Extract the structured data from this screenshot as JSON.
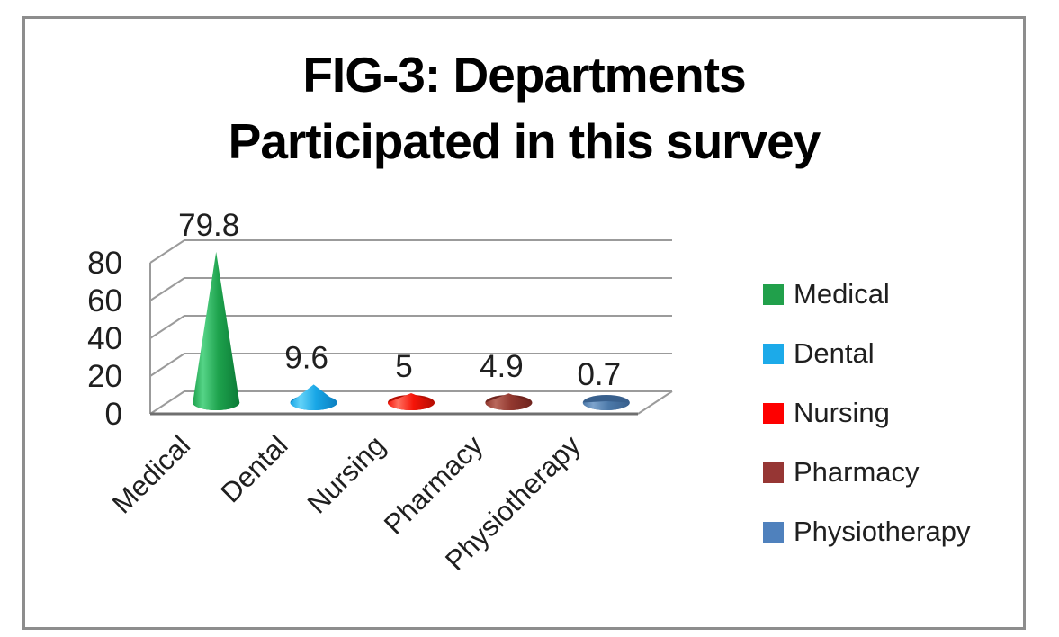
{
  "chart_data": {
    "type": "bar",
    "subtype": "3d-cone",
    "title": "FIG-3: Departments Participated in this survey",
    "title_lines": [
      "FIG-3: Departments",
      "Participated in this survey"
    ],
    "categories": [
      "Medical",
      "Dental",
      "Nursing",
      "Pharmacy",
      "Physiotherapy"
    ],
    "values": [
      79.8,
      9.6,
      5,
      4.9,
      0.7
    ],
    "data_labels": [
      "79.8",
      "9.6",
      "5",
      "4.9",
      "0.7"
    ],
    "xlabel": "",
    "ylabel": "",
    "y_ticks": [
      0,
      20,
      40,
      60,
      80
    ],
    "ylim": [
      0,
      80
    ],
    "grid": true,
    "legend_position": "right",
    "series_styles": [
      {
        "name": "Medical",
        "light": "#55d487",
        "main": "#1ea24d",
        "dark": "#0b7a36",
        "legend": "#21a04b"
      },
      {
        "name": "Dental",
        "light": "#63d2f8",
        "main": "#18a6e6",
        "dark": "#0c7fc0",
        "legend": "#1caae9"
      },
      {
        "name": "Nursing",
        "light": "#ff6f5e",
        "main": "#f51408",
        "dark": "#b50d02",
        "legend": "#fe0000"
      },
      {
        "name": "Pharmacy",
        "light": "#b9685c",
        "main": "#92382f",
        "dark": "#6f241e",
        "legend": "#963634"
      },
      {
        "name": "Physiotherapy",
        "light": "#7da3cc",
        "main": "#4c79a9",
        "dark": "#39608d",
        "legend": "#4f81bd"
      }
    ],
    "frame_border_color": "#8d8d8d",
    "background_color": "#ffffff"
  }
}
